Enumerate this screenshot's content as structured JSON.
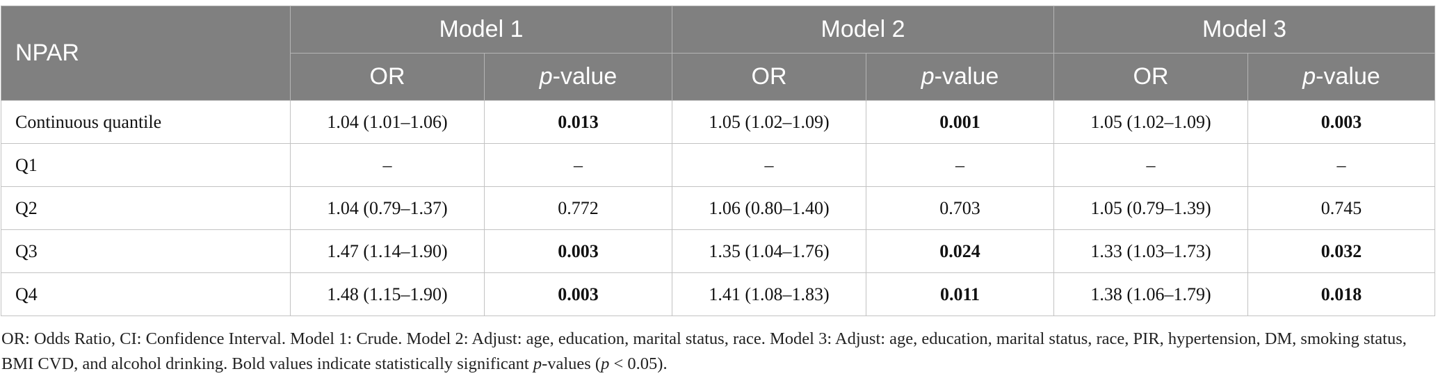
{
  "table": {
    "corner_label": "NPAR",
    "models": [
      "Model 1",
      "Model 2",
      "Model 3"
    ],
    "sub_headers": {
      "or": "OR",
      "p_prefix": "p",
      "p_suffix": "-value"
    },
    "rows": [
      {
        "label": "Continuous quantile",
        "cells": [
          {
            "text": "1.04 (1.01–1.06)",
            "bold": false
          },
          {
            "text": "0.013",
            "bold": true
          },
          {
            "text": "1.05 (1.02–1.09)",
            "bold": false
          },
          {
            "text": "0.001",
            "bold": true
          },
          {
            "text": "1.05 (1.02–1.09)",
            "bold": false
          },
          {
            "text": "0.003",
            "bold": true
          }
        ]
      },
      {
        "label": "Q1",
        "cells": [
          {
            "text": "–",
            "bold": false
          },
          {
            "text": "–",
            "bold": false
          },
          {
            "text": "–",
            "bold": false
          },
          {
            "text": "–",
            "bold": false
          },
          {
            "text": "–",
            "bold": false
          },
          {
            "text": "–",
            "bold": false
          }
        ]
      },
      {
        "label": "Q2",
        "cells": [
          {
            "text": "1.04 (0.79–1.37)",
            "bold": false
          },
          {
            "text": "0.772",
            "bold": false
          },
          {
            "text": "1.06 (0.80–1.40)",
            "bold": false
          },
          {
            "text": "0.703",
            "bold": false
          },
          {
            "text": "1.05 (0.79–1.39)",
            "bold": false
          },
          {
            "text": "0.745",
            "bold": false
          }
        ]
      },
      {
        "label": "Q3",
        "cells": [
          {
            "text": "1.47 (1.14–1.90)",
            "bold": false
          },
          {
            "text": "0.003",
            "bold": true
          },
          {
            "text": "1.35 (1.04–1.76)",
            "bold": false
          },
          {
            "text": "0.024",
            "bold": true
          },
          {
            "text": "1.33 (1.03–1.73)",
            "bold": false
          },
          {
            "text": "0.032",
            "bold": true
          }
        ]
      },
      {
        "label": "Q4",
        "cells": [
          {
            "text": "1.48 (1.15–1.90)",
            "bold": false
          },
          {
            "text": "0.003",
            "bold": true
          },
          {
            "text": "1.41 (1.08–1.83)",
            "bold": false
          },
          {
            "text": "0.011",
            "bold": true
          },
          {
            "text": "1.38 (1.06–1.79)",
            "bold": false
          },
          {
            "text": "0.018",
            "bold": true
          }
        ]
      }
    ]
  },
  "footnote": {
    "main": "OR: Odds Ratio, CI: Confidence Interval. Model 1: Crude. Model 2: Adjust: age, education, marital status, race. Model 3: Adjust: age, education, marital status, race, PIR, hypertension, DM, smoking status, BMI CVD, and alcohol drinking. Bold values indicate statistically significant ",
    "p1": "p",
    "mid": "-values (",
    "p2": "p",
    "end": " < 0.05)."
  },
  "colors": {
    "header_bg": "#808080",
    "header_text": "#ffffff",
    "border": "#c2c2c2"
  }
}
